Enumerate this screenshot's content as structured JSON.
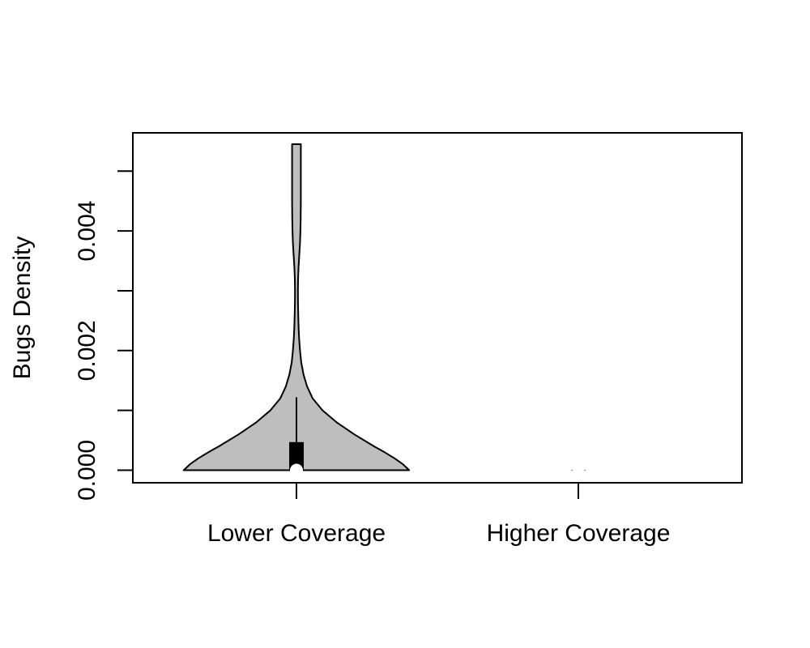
{
  "chart_data": {
    "type": "violin",
    "title": "",
    "xlabel": "",
    "ylabel": "Bugs Density",
    "ylim": [
      -0.00021,
      0.00564
    ],
    "y_ticks": [
      0.0,
      0.001,
      0.002,
      0.003,
      0.004,
      0.005
    ],
    "y_tick_labels": [
      "0.000",
      "",
      "0.002",
      "",
      "0.004",
      ""
    ],
    "categories": [
      "Lower Coverage",
      "Higher Coverage"
    ],
    "grid": false,
    "colors": {
      "violin_fill": "#bebebe",
      "outline": "#000000",
      "box": "#000000",
      "median": "#ffffff"
    },
    "groups": [
      {
        "label": "Lower Coverage",
        "min": 0.0,
        "max": 0.00545,
        "q1": 0.0,
        "median": 0.0,
        "q3": 0.00047,
        "whisker_high": 0.00122,
        "density_profile": [
          [
            0.0,
            0.8
          ],
          [
            0.0001,
            0.755
          ],
          [
            0.0002,
            0.695
          ],
          [
            0.0003,
            0.625
          ],
          [
            0.0004,
            0.55
          ],
          [
            0.0006,
            0.41
          ],
          [
            0.0008,
            0.285
          ],
          [
            0.001,
            0.185
          ],
          [
            0.0012,
            0.115
          ],
          [
            0.0014,
            0.075
          ],
          [
            0.0016,
            0.05
          ],
          [
            0.0018,
            0.034
          ],
          [
            0.002,
            0.025
          ],
          [
            0.0022,
            0.019
          ],
          [
            0.0024,
            0.015
          ],
          [
            0.0026,
            0.0125
          ],
          [
            0.0028,
            0.011
          ],
          [
            0.003,
            0.0105
          ],
          [
            0.0032,
            0.0115
          ],
          [
            0.0034,
            0.015
          ],
          [
            0.0036,
            0.02
          ],
          [
            0.0038,
            0.025
          ],
          [
            0.004,
            0.028
          ],
          [
            0.0042,
            0.03
          ],
          [
            0.0045,
            0.031
          ],
          [
            0.005,
            0.031
          ],
          [
            0.00545,
            0.031
          ]
        ]
      },
      {
        "label": "Higher Coverage",
        "min": 0.0,
        "max": 0.0,
        "q1": 0.0,
        "median": 0.0,
        "q3": 0.0,
        "whisker_high": 0.0,
        "density_profile": []
      }
    ]
  }
}
